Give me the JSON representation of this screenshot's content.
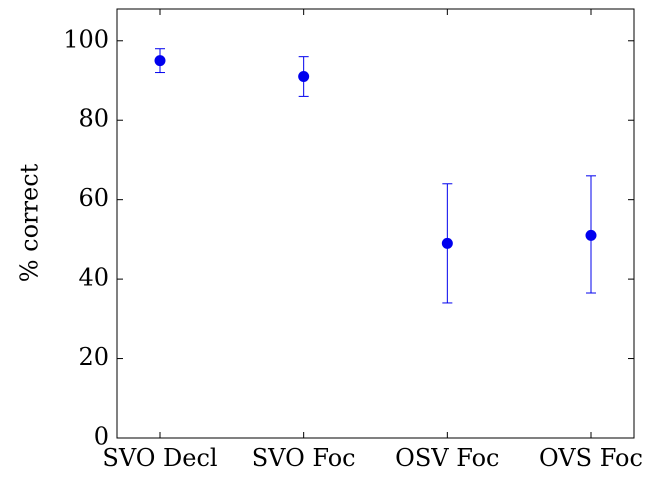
{
  "chart_data": {
    "type": "scatter",
    "title": "",
    "xlabel": "",
    "ylabel": "% correct",
    "categories": [
      "SVO Decl",
      "SVO Foc",
      "OSV Foc",
      "OVS Foc"
    ],
    "series": [
      {
        "values": [
          95,
          91,
          49,
          51
        ],
        "error_low": [
          92,
          86,
          34,
          36.5
        ],
        "error_high": [
          98,
          96,
          64,
          66
        ],
        "color": "#0000ee"
      }
    ],
    "ylim": [
      0,
      108
    ],
    "yticks": [
      0,
      20,
      40,
      60,
      80,
      100
    ],
    "grid": false,
    "legend": "none"
  }
}
